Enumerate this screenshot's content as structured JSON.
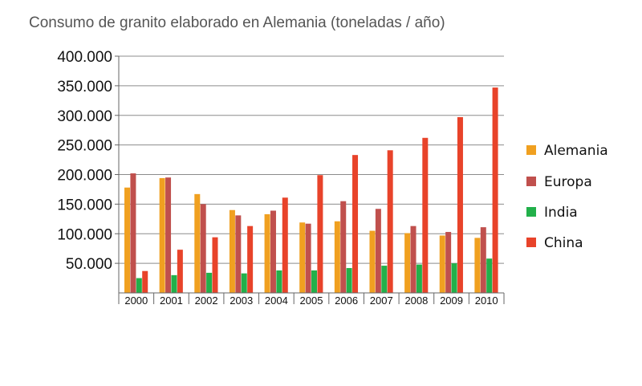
{
  "chart_data": {
    "type": "bar",
    "title": "Consumo de granito elaborado en Alemania (toneladas / año)",
    "categories": [
      "2000",
      "2001",
      "2002",
      "2003",
      "2004",
      "2005",
      "2006",
      "2007",
      "2008",
      "2009",
      "2010"
    ],
    "series": [
      {
        "name": "Alemania",
        "color": "#F0A020",
        "values": [
          178000,
          194000,
          167000,
          140000,
          133000,
          119000,
          121000,
          105000,
          101000,
          97000,
          93000
        ]
      },
      {
        "name": "Europa",
        "color": "#C0504D",
        "values": [
          202000,
          195000,
          150000,
          131000,
          139000,
          117000,
          155000,
          142000,
          113000,
          103000,
          111000
        ]
      },
      {
        "name": "India",
        "color": "#22B04A",
        "values": [
          25000,
          30000,
          34000,
          33000,
          38000,
          38000,
          42000,
          46000,
          48000,
          50000,
          58000
        ]
      },
      {
        "name": "China",
        "color": "#E8432A",
        "values": [
          37000,
          73000,
          94000,
          113000,
          161000,
          199000,
          233000,
          241000,
          262000,
          297000,
          347000
        ]
      }
    ],
    "yticks": [
      "50.000",
      "100.000",
      "150.000",
      "200.000",
      "250.000",
      "300.000",
      "350.000",
      "400.000"
    ],
    "ytick_values": [
      50000,
      100000,
      150000,
      200000,
      250000,
      300000,
      350000,
      400000
    ],
    "ylim": [
      0,
      400000
    ],
    "grid": true,
    "legend": "right"
  }
}
